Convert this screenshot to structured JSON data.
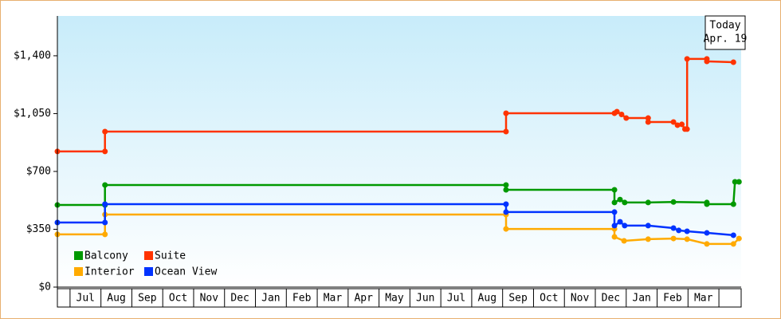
{
  "chart_data": {
    "type": "line",
    "annotation": [
      "Today",
      "Apr. 19"
    ],
    "xlim": [
      -0.41,
      21.72
    ],
    "xticks": [
      {
        "value": 0.5,
        "label": "Jul"
      },
      {
        "value": 1.5,
        "label": "Aug"
      },
      {
        "value": 2.5,
        "label": "Sep"
      },
      {
        "value": 3.5,
        "label": "Oct"
      },
      {
        "value": 4.5,
        "label": "Nov"
      },
      {
        "value": 5.5,
        "label": "Dec"
      },
      {
        "value": 6.5,
        "label": "Jan"
      },
      {
        "value": 7.5,
        "label": "Feb"
      },
      {
        "value": 8.5,
        "label": "Mar"
      },
      {
        "value": 9.5,
        "label": "Apr"
      },
      {
        "value": 10.5,
        "label": "May"
      },
      {
        "value": 11.5,
        "label": "Jun"
      },
      {
        "value": 12.5,
        "label": "Jul"
      },
      {
        "value": 13.5,
        "label": "Aug"
      },
      {
        "value": 14.5,
        "label": "Sep"
      },
      {
        "value": 15.5,
        "label": "Oct"
      },
      {
        "value": 16.5,
        "label": "Nov"
      },
      {
        "value": 17.5,
        "label": "Dec"
      },
      {
        "value": 18.5,
        "label": "Jan"
      },
      {
        "value": 19.5,
        "label": "Feb"
      },
      {
        "value": 20.5,
        "label": "Mar"
      }
    ],
    "ylim": [
      0,
      1641
    ],
    "yticks": [
      {
        "value": 0,
        "label": "$0"
      },
      {
        "value": 350,
        "label": "$350"
      },
      {
        "value": 700,
        "label": "$700"
      },
      {
        "value": 1050,
        "label": "$1,050"
      },
      {
        "value": 1400,
        "label": "$1,400"
      }
    ],
    "series": [
      {
        "name": "Balcony",
        "color": "#009900",
        "x": [
          -0.41,
          1.13,
          1.13,
          14.11,
          14.11,
          17.62,
          17.62,
          17.8,
          17.95,
          18.71,
          19.53,
          20.61,
          20.61,
          21.47,
          21.52,
          21.65
        ],
        "values": [
          497,
          497,
          618,
          618,
          589,
          589,
          512,
          530,
          512,
          512,
          515,
          512,
          502,
          502,
          637,
          637
        ]
      },
      {
        "name": "Suite",
        "color": "#ff3300",
        "x": [
          -0.41,
          1.13,
          1.13,
          14.11,
          14.11,
          17.62,
          17.7,
          17.85,
          18.0,
          18.71,
          18.71,
          19.53,
          19.66,
          19.8,
          19.9,
          19.97,
          19.97,
          20.61,
          20.61,
          21.47
        ],
        "values": [
          821,
          821,
          941,
          941,
          1052,
          1052,
          1062,
          1045,
          1023,
          1023,
          999,
          999,
          980,
          985,
          956,
          956,
          1381,
          1381,
          1366,
          1361
        ]
      },
      {
        "name": "Interior",
        "color": "#ffaa00",
        "x": [
          -0.41,
          1.13,
          1.13,
          14.11,
          14.11,
          17.62,
          17.62,
          17.93,
          18.71,
          19.53,
          19.97,
          20.61,
          21.47,
          21.65
        ],
        "values": [
          319,
          319,
          439,
          439,
          352,
          352,
          304,
          280,
          290,
          294,
          290,
          261,
          261,
          294
        ]
      },
      {
        "name": "Ocean View",
        "color": "#0033ff",
        "x": [
          -0.41,
          1.13,
          1.13,
          14.11,
          14.11,
          17.62,
          17.62,
          17.8,
          17.95,
          18.71,
          19.53,
          19.7,
          19.97,
          20.61,
          21.47
        ],
        "values": [
          391,
          391,
          502,
          502,
          454,
          454,
          372,
          395,
          372,
          372,
          357,
          343,
          338,
          328,
          314
        ]
      }
    ]
  }
}
